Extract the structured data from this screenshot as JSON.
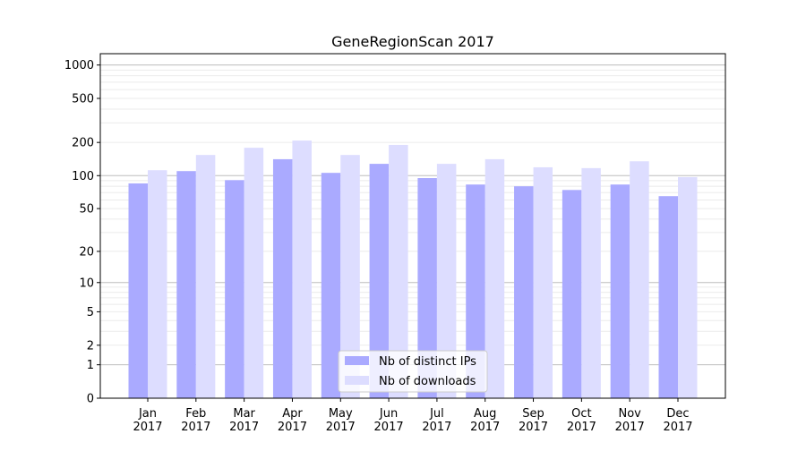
{
  "chart_data": {
    "type": "bar",
    "title": "GeneRegionScan 2017",
    "xlabel": "",
    "ylabel": "",
    "yscale": "log10(y+1)",
    "ylim": [
      0,
      1265
    ],
    "yticks": [
      0,
      1,
      2,
      5,
      10,
      20,
      50,
      100,
      200,
      500,
      1000
    ],
    "grid": "major and minor horizontal",
    "legend_position": "bottom-center",
    "categories": [
      "Jan\n2017",
      "Feb\n2017",
      "Mar\n2017",
      "Apr\n2017",
      "May\n2017",
      "Jun\n2017",
      "Jul\n2017",
      "Aug\n2017",
      "Sep\n2017",
      "Oct\n2017",
      "Nov\n2017",
      "Dec\n2017"
    ],
    "series": [
      {
        "name": "Nb of distinct IPs",
        "color": "#aaaaff",
        "values": [
          85,
          110,
          91,
          141,
          106,
          128,
          95,
          83,
          80,
          74,
          83,
          65
        ]
      },
      {
        "name": "Nb of downloads",
        "color": "#ddddff",
        "values": [
          112,
          154,
          179,
          208,
          154,
          190,
          128,
          141,
          119,
          117,
          135,
          97
        ]
      }
    ]
  }
}
